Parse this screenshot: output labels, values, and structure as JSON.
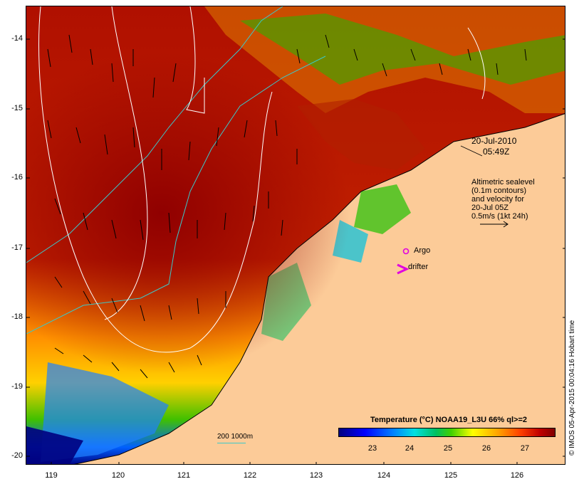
{
  "map": {
    "date": "20-Jul-2010",
    "time": "05:49Z",
    "legend_lines": [
      "Altimetric sealevel",
      "(0.1m contours)",
      "and velocity for",
      "20-Jul 05Z",
      "0.5m/s (1kt 24h)"
    ],
    "argo_label": "Argo",
    "drifter_label": "drifter",
    "credit": "© IMOS 05-Apr-2015 00:04:16 Hobart time",
    "scale_label": "200  1000m",
    "colorbar_title": "Temperature (°C) NOAA19_L3U 66% ql>=2",
    "colorbar_ticks": [
      "23",
      "24",
      "25",
      "26",
      "27"
    ],
    "y_ticks": [
      "-14",
      "-15",
      "-16",
      "-17",
      "-18",
      "-19",
      "-20"
    ],
    "x_ticks": [
      "119",
      "120",
      "121",
      "122",
      "123",
      "124",
      "125",
      "126"
    ],
    "colors": {
      "land": "#fccb98",
      "isobath": "#3cc8c8",
      "contour": "#ffffff",
      "argo": "#e000e0",
      "drifter": "#e000e0"
    }
  }
}
